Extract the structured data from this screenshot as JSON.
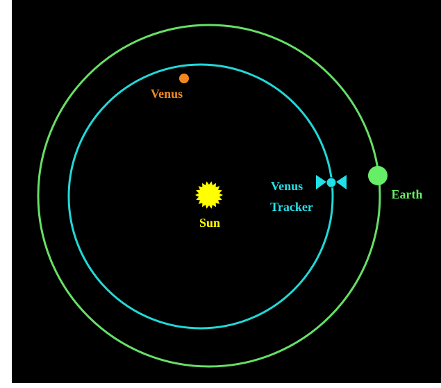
{
  "labels": {
    "venus": "Venus",
    "sun": "Sun",
    "tracker": [
      "Venus",
      "Tracker"
    ],
    "earth": "Earth"
  }
}
